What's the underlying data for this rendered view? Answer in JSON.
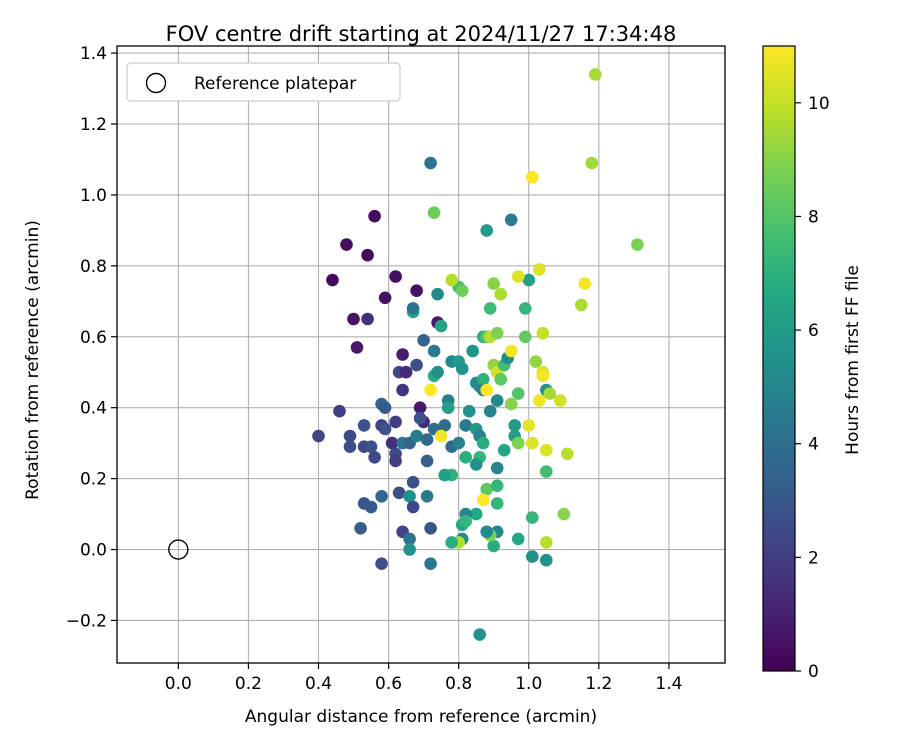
{
  "chart_data": {
    "type": "scatter",
    "title": "FOV centre drift starting at 2024/11/27 17:34:48",
    "xlabel": "Angular distance from reference (arcmin)",
    "ylabel": "Rotation from reference (arcmin)",
    "xlim": [
      -0.175,
      1.56
    ],
    "ylim": [
      -0.32,
      1.42
    ],
    "xticks": [
      "0.0",
      "0.2",
      "0.4",
      "0.6",
      "0.8",
      "1.0",
      "1.2",
      "1.4"
    ],
    "yticks": [
      "−0.2",
      "0.0",
      "0.2",
      "0.4",
      "0.6",
      "0.8",
      "1.0",
      "1.2",
      "1.4"
    ],
    "grid": true,
    "legend": {
      "position": "upper-left",
      "entries": [
        "Reference platepar"
      ]
    },
    "reference_point": {
      "x": 0.0,
      "y": 0.0
    },
    "colorbar": {
      "label": "Hours from first FF file",
      "range": [
        0,
        11
      ],
      "ticks": [
        "0",
        "2",
        "4",
        "6",
        "8",
        "10"
      ],
      "colormap": "viridis"
    },
    "points": [
      {
        "x": 0.56,
        "y": 0.94,
        "t": 0.3
      },
      {
        "x": 0.48,
        "y": 0.86,
        "t": 0.4
      },
      {
        "x": 0.54,
        "y": 0.83,
        "t": 0.3
      },
      {
        "x": 0.44,
        "y": 0.76,
        "t": 0.3
      },
      {
        "x": 0.62,
        "y": 0.77,
        "t": 0.4
      },
      {
        "x": 0.68,
        "y": 0.73,
        "t": 0.6
      },
      {
        "x": 0.59,
        "y": 0.71,
        "t": 0.5
      },
      {
        "x": 0.5,
        "y": 0.65,
        "t": 0.6
      },
      {
        "x": 0.54,
        "y": 0.65,
        "t": 1.5
      },
      {
        "x": 0.74,
        "y": 0.64,
        "t": 0.8
      },
      {
        "x": 0.51,
        "y": 0.57,
        "t": 0.7
      },
      {
        "x": 0.64,
        "y": 0.55,
        "t": 0.9
      },
      {
        "x": 0.63,
        "y": 0.5,
        "t": 2.5
      },
      {
        "x": 0.65,
        "y": 0.5,
        "t": 1.3
      },
      {
        "x": 0.68,
        "y": 0.52,
        "t": 2.6
      },
      {
        "x": 0.64,
        "y": 0.45,
        "t": 1.6
      },
      {
        "x": 0.69,
        "y": 0.4,
        "t": 0.8
      },
      {
        "x": 0.7,
        "y": 0.36,
        "t": 1.2
      },
      {
        "x": 0.46,
        "y": 0.39,
        "t": 2.0
      },
      {
        "x": 0.4,
        "y": 0.32,
        "t": 2.3
      },
      {
        "x": 0.49,
        "y": 0.32,
        "t": 2.5
      },
      {
        "x": 0.49,
        "y": 0.29,
        "t": 2.6
      },
      {
        "x": 0.53,
        "y": 0.29,
        "t": 2.4
      },
      {
        "x": 0.55,
        "y": 0.29,
        "t": 2.8
      },
      {
        "x": 0.56,
        "y": 0.26,
        "t": 2.4
      },
      {
        "x": 0.53,
        "y": 0.35,
        "t": 2.8
      },
      {
        "x": 0.58,
        "y": 0.35,
        "t": 2.2
      },
      {
        "x": 0.59,
        "y": 0.34,
        "t": 2.7
      },
      {
        "x": 0.58,
        "y": 0.41,
        "t": 3.4
      },
      {
        "x": 0.59,
        "y": 0.4,
        "t": 3.1
      },
      {
        "x": 0.62,
        "y": 0.36,
        "t": 2.0
      },
      {
        "x": 0.61,
        "y": 0.3,
        "t": 1.4
      },
      {
        "x": 0.62,
        "y": 0.27,
        "t": 2.4
      },
      {
        "x": 0.62,
        "y": 0.25,
        "t": 2.0
      },
      {
        "x": 0.64,
        "y": 0.3,
        "t": 4.3
      },
      {
        "x": 0.66,
        "y": 0.3,
        "t": 3.5
      },
      {
        "x": 0.68,
        "y": 0.32,
        "t": 4.5
      },
      {
        "x": 0.71,
        "y": 0.31,
        "t": 3.7
      },
      {
        "x": 0.69,
        "y": 0.37,
        "t": 2.7
      },
      {
        "x": 0.71,
        "y": 0.25,
        "t": 3.3
      },
      {
        "x": 0.73,
        "y": 0.34,
        "t": 4.0
      },
      {
        "x": 0.53,
        "y": 0.13,
        "t": 3.0
      },
      {
        "x": 0.55,
        "y": 0.12,
        "t": 3.0
      },
      {
        "x": 0.58,
        "y": 0.15,
        "t": 3.6
      },
      {
        "x": 0.63,
        "y": 0.16,
        "t": 2.6
      },
      {
        "x": 0.66,
        "y": 0.15,
        "t": 5.5
      },
      {
        "x": 0.67,
        "y": 0.19,
        "t": 2.7
      },
      {
        "x": 0.67,
        "y": 0.12,
        "t": 2.4
      },
      {
        "x": 0.71,
        "y": 0.15,
        "t": 4.5
      },
      {
        "x": 0.52,
        "y": 0.06,
        "t": 3.2
      },
      {
        "x": 0.64,
        "y": 0.05,
        "t": 2.2
      },
      {
        "x": 0.66,
        "y": 0.03,
        "t": 4.3
      },
      {
        "x": 0.66,
        "y": 0.0,
        "t": 5.6
      },
      {
        "x": 0.72,
        "y": 0.06,
        "t": 2.8
      },
      {
        "x": 0.58,
        "y": -0.04,
        "t": 2.6
      },
      {
        "x": 0.72,
        "y": -0.04,
        "t": 4.5
      },
      {
        "x": 0.72,
        "y": 1.09,
        "t": 4.3
      },
      {
        "x": 0.73,
        "y": 0.95,
        "t": 8.5
      },
      {
        "x": 0.67,
        "y": 0.67,
        "t": 6.5
      },
      {
        "x": 0.67,
        "y": 0.68,
        "t": 4.2
      },
      {
        "x": 0.7,
        "y": 0.59,
        "t": 3.5
      },
      {
        "x": 0.73,
        "y": 0.56,
        "t": 4.5
      },
      {
        "x": 0.74,
        "y": 0.72,
        "t": 5.2
      },
      {
        "x": 0.75,
        "y": 0.63,
        "t": 6.4
      },
      {
        "x": 0.73,
        "y": 0.49,
        "t": 6.8
      },
      {
        "x": 0.74,
        "y": 0.5,
        "t": 5.5
      },
      {
        "x": 0.77,
        "y": 0.42,
        "t": 4.6
      },
      {
        "x": 0.77,
        "y": 0.4,
        "t": 6.2
      },
      {
        "x": 0.78,
        "y": 0.53,
        "t": 5.1
      },
      {
        "x": 0.8,
        "y": 0.53,
        "t": 6.0
      },
      {
        "x": 0.81,
        "y": 0.51,
        "t": 5.6
      },
      {
        "x": 0.8,
        "y": 0.74,
        "t": 7.7
      },
      {
        "x": 0.81,
        "y": 0.73,
        "t": 8.5
      },
      {
        "x": 0.78,
        "y": 0.76,
        "t": 9.8
      },
      {
        "x": 0.76,
        "y": 0.35,
        "t": 4.0
      },
      {
        "x": 0.78,
        "y": 0.29,
        "t": 3.8
      },
      {
        "x": 0.8,
        "y": 0.3,
        "t": 4.8
      },
      {
        "x": 0.82,
        "y": 0.26,
        "t": 6.8
      },
      {
        "x": 0.82,
        "y": 0.35,
        "t": 4.4
      },
      {
        "x": 0.83,
        "y": 0.39,
        "t": 5.5
      },
      {
        "x": 0.84,
        "y": 0.56,
        "t": 5.8
      },
      {
        "x": 0.85,
        "y": 0.47,
        "t": 5.4
      },
      {
        "x": 0.86,
        "y": 0.46,
        "t": 5.0
      },
      {
        "x": 0.87,
        "y": 0.48,
        "t": 7.0
      },
      {
        "x": 0.87,
        "y": 0.45,
        "t": 4.6
      },
      {
        "x": 0.87,
        "y": 0.6,
        "t": 6.8
      },
      {
        "x": 0.88,
        "y": 0.6,
        "t": 8.0
      },
      {
        "x": 0.89,
        "y": 0.6,
        "t": 9.8
      },
      {
        "x": 0.89,
        "y": 0.68,
        "t": 7.5
      },
      {
        "x": 0.9,
        "y": 0.52,
        "t": 9.2
      },
      {
        "x": 0.91,
        "y": 0.5,
        "t": 10.2
      },
      {
        "x": 0.91,
        "y": 0.42,
        "t": 5.1
      },
      {
        "x": 0.92,
        "y": 0.48,
        "t": 8.2
      },
      {
        "x": 0.92,
        "y": 0.72,
        "t": 9.6
      },
      {
        "x": 0.9,
        "y": 0.75,
        "t": 9.0
      },
      {
        "x": 0.91,
        "y": 0.61,
        "t": 8.8
      },
      {
        "x": 0.93,
        "y": 0.52,
        "t": 7.6
      },
      {
        "x": 0.94,
        "y": 0.54,
        "t": 5.3
      },
      {
        "x": 0.88,
        "y": 0.9,
        "t": 6.0
      },
      {
        "x": 0.95,
        "y": 0.93,
        "t": 4.6
      },
      {
        "x": 0.85,
        "y": 0.34,
        "t": 6.0
      },
      {
        "x": 0.86,
        "y": 0.32,
        "t": 4.8
      },
      {
        "x": 0.87,
        "y": 0.3,
        "t": 6.8
      },
      {
        "x": 0.89,
        "y": 0.39,
        "t": 5.0
      },
      {
        "x": 0.86,
        "y": 0.26,
        "t": 7.2
      },
      {
        "x": 0.85,
        "y": 0.24,
        "t": 5.6
      },
      {
        "x": 0.88,
        "y": 0.17,
        "t": 8.2
      },
      {
        "x": 0.87,
        "y": 0.14,
        "t": 11.0
      },
      {
        "x": 0.91,
        "y": 0.23,
        "t": 5.0
      },
      {
        "x": 0.91,
        "y": 0.18,
        "t": 7.2
      },
      {
        "x": 0.93,
        "y": 0.28,
        "t": 6.5
      },
      {
        "x": 0.96,
        "y": 0.35,
        "t": 6.0
      },
      {
        "x": 0.96,
        "y": 0.32,
        "t": 6.2
      },
      {
        "x": 0.97,
        "y": 0.3,
        "t": 8.8
      },
      {
        "x": 0.97,
        "y": 0.44,
        "t": 8.0
      },
      {
        "x": 0.95,
        "y": 0.41,
        "t": 9.0
      },
      {
        "x": 0.99,
        "y": 0.6,
        "t": 8.3
      },
      {
        "x": 0.99,
        "y": 0.68,
        "t": 7.2
      },
      {
        "x": 1.0,
        "y": 0.76,
        "t": 6.2
      },
      {
        "x": 0.97,
        "y": 0.77,
        "t": 10.4
      },
      {
        "x": 1.01,
        "y": 1.05,
        "t": 11.0
      },
      {
        "x": 1.03,
        "y": 0.79,
        "t": 10.5
      },
      {
        "x": 1.04,
        "y": 0.61,
        "t": 10.0
      },
      {
        "x": 1.02,
        "y": 0.53,
        "t": 9.2
      },
      {
        "x": 1.04,
        "y": 0.5,
        "t": 10.4
      },
      {
        "x": 1.04,
        "y": 0.49,
        "t": 10.8
      },
      {
        "x": 1.03,
        "y": 0.42,
        "t": 10.8
      },
      {
        "x": 1.05,
        "y": 0.45,
        "t": 5.5
      },
      {
        "x": 1.06,
        "y": 0.44,
        "t": 9.5
      },
      {
        "x": 1.09,
        "y": 0.42,
        "t": 10.2
      },
      {
        "x": 1.0,
        "y": 0.35,
        "t": 10.6
      },
      {
        "x": 1.01,
        "y": 0.3,
        "t": 10.4
      },
      {
        "x": 1.05,
        "y": 0.28,
        "t": 10.4
      },
      {
        "x": 1.05,
        "y": 0.22,
        "t": 7.6
      },
      {
        "x": 1.11,
        "y": 0.27,
        "t": 9.8
      },
      {
        "x": 1.1,
        "y": 0.1,
        "t": 9.0
      },
      {
        "x": 1.05,
        "y": 0.02,
        "t": 9.8
      },
      {
        "x": 1.05,
        "y": -0.03,
        "t": 5.6
      },
      {
        "x": 1.01,
        "y": -0.02,
        "t": 5.5
      },
      {
        "x": 1.01,
        "y": 0.09,
        "t": 7.2
      },
      {
        "x": 0.97,
        "y": 0.03,
        "t": 6.5
      },
      {
        "x": 0.91,
        "y": 0.05,
        "t": 5.0
      },
      {
        "x": 0.9,
        "y": 0.01,
        "t": 6.8
      },
      {
        "x": 0.89,
        "y": 0.04,
        "t": 8.8
      },
      {
        "x": 0.88,
        "y": 0.05,
        "t": 5.2
      },
      {
        "x": 0.91,
        "y": 0.13,
        "t": 7.2
      },
      {
        "x": 0.85,
        "y": 0.1,
        "t": 6.6
      },
      {
        "x": 0.82,
        "y": 0.1,
        "t": 5.0
      },
      {
        "x": 0.81,
        "y": 0.07,
        "t": 6.6
      },
      {
        "x": 0.82,
        "y": 0.08,
        "t": 7.2
      },
      {
        "x": 0.81,
        "y": 0.03,
        "t": 5.2
      },
      {
        "x": 0.8,
        "y": 0.02,
        "t": 9.8
      },
      {
        "x": 0.78,
        "y": 0.02,
        "t": 6.8
      },
      {
        "x": 0.78,
        "y": 0.21,
        "t": 7.0
      },
      {
        "x": 0.76,
        "y": 0.21,
        "t": 6.2
      },
      {
        "x": 0.86,
        "y": -0.24,
        "t": 5.6
      },
      {
        "x": 0.75,
        "y": 0.32,
        "t": 10.8
      },
      {
        "x": 0.72,
        "y": 0.45,
        "t": 11.0
      },
      {
        "x": 0.88,
        "y": 0.45,
        "t": 11.0
      },
      {
        "x": 1.15,
        "y": 0.69,
        "t": 9.6
      },
      {
        "x": 1.16,
        "y": 0.75,
        "t": 10.8
      },
      {
        "x": 1.18,
        "y": 1.09,
        "t": 9.4
      },
      {
        "x": 1.19,
        "y": 1.34,
        "t": 9.5
      },
      {
        "x": 1.31,
        "y": 0.86,
        "t": 8.8
      },
      {
        "x": 0.95,
        "y": 0.56,
        "t": 10.8
      }
    ]
  }
}
